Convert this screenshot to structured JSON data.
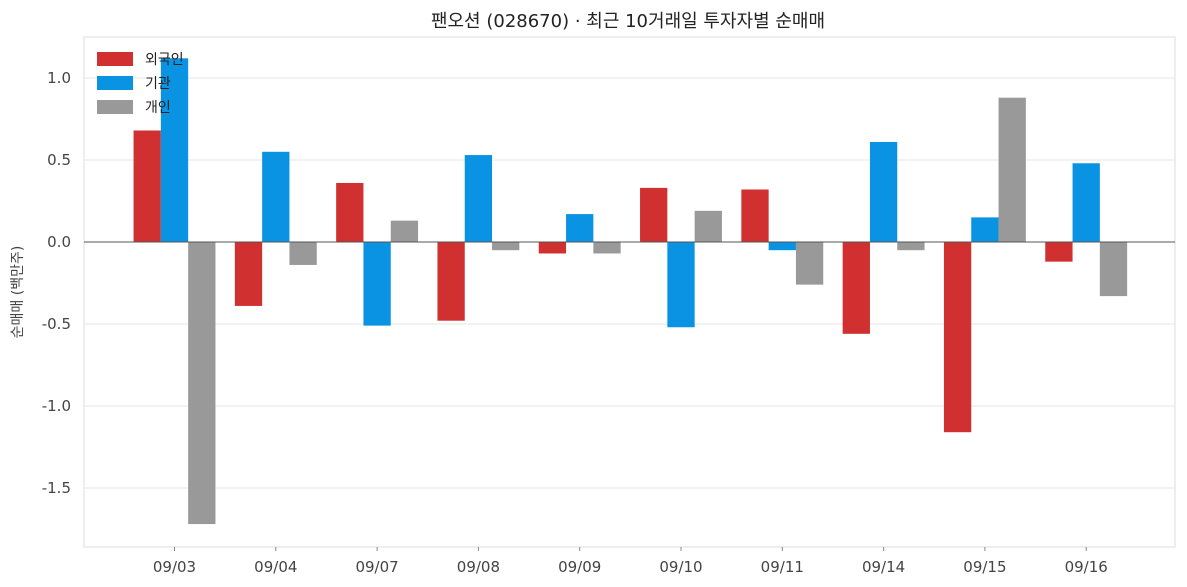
{
  "chart_data": {
    "type": "bar",
    "title": "팬오션 (028670) · 최근 10거래일 투자자별 순매매",
    "xlabel": "",
    "ylabel": "순매매 (백만주)",
    "categories": [
      "09/03",
      "09/04",
      "09/07",
      "09/08",
      "09/09",
      "09/10",
      "09/11",
      "09/14",
      "09/15",
      "09/16"
    ],
    "series": [
      {
        "name": "외국인",
        "color": "#d03030",
        "values": [
          0.68,
          -0.39,
          0.36,
          -0.48,
          -0.07,
          0.33,
          0.32,
          -0.56,
          -1.16,
          -0.12
        ]
      },
      {
        "name": "기관",
        "color": "#0a93e2",
        "values": [
          1.12,
          0.55,
          -0.51,
          0.53,
          0.17,
          -0.52,
          -0.05,
          0.61,
          0.15,
          0.48
        ]
      },
      {
        "name": "개인",
        "color": "#999999",
        "values": [
          -1.72,
          -0.14,
          0.13,
          -0.05,
          -0.07,
          0.19,
          -0.26,
          -0.05,
          0.88,
          -0.33
        ]
      }
    ],
    "ylim": [
      -1.86,
      1.25
    ],
    "yticks": [
      1.0,
      0.5,
      0.0,
      -0.5,
      -1.0,
      -1.5
    ],
    "ytick_labels": [
      "1.0",
      "0.5",
      "0.0",
      "-0.5",
      "-1.0",
      "-1.5"
    ],
    "grid": "y",
    "legend": "top-left"
  }
}
